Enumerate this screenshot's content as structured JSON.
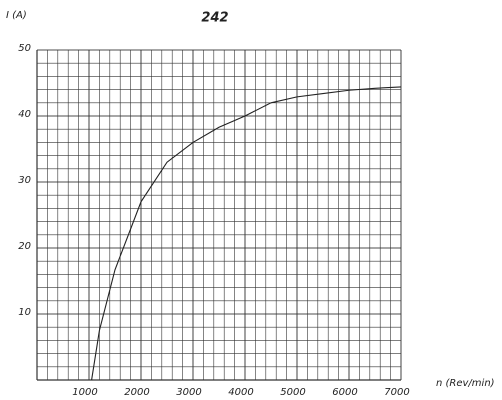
{
  "chart_data": {
    "type": "line",
    "title": "242",
    "x_label": "n (Rev/min)",
    "y_label": "I (A)",
    "x": [
      1050,
      1200,
      1500,
      2000,
      2500,
      3000,
      3500,
      4000,
      4500,
      5000,
      5500,
      6000,
      6500,
      7000
    ],
    "series": [
      {
        "name": "I",
        "color": "#222222",
        "values": [
          0,
          7.5,
          16.7,
          27,
          33,
          36,
          38.3,
          40,
          42,
          42.9,
          43.4,
          43.9,
          44.2,
          44.4
        ]
      }
    ],
    "xlim": [
      0,
      7000
    ],
    "xticks": [
      1000,
      2000,
      3000,
      4000,
      5000,
      6000,
      7000
    ],
    "ylim": [
      0,
      50
    ],
    "yticks": [
      10,
      20,
      30,
      40,
      50
    ],
    "grid": true
  }
}
